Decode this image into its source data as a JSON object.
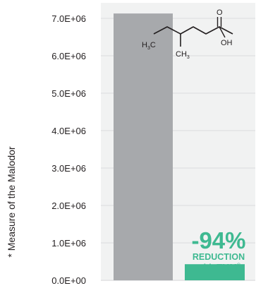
{
  "chart_data": {
    "type": "bar",
    "ylabel": "* Measure of the Malodor",
    "ylim": [
      0,
      7000000
    ],
    "y_ticks": [
      {
        "value": 0,
        "label": "0.0E+00"
      },
      {
        "value": 1000000,
        "label": "1.0E+06"
      },
      {
        "value": 2000000,
        "label": "2.0E+06"
      },
      {
        "value": 3000000,
        "label": "3.0E+06"
      },
      {
        "value": 4000000,
        "label": "4.0E+06"
      },
      {
        "value": 5000000,
        "label": "5.0E+06"
      },
      {
        "value": 6000000,
        "label": "6.0E+06"
      },
      {
        "value": 7000000,
        "label": "7.0E+06"
      }
    ],
    "grid": true,
    "bars": [
      {
        "value": 7130000,
        "color": "#a7a9ac"
      },
      {
        "value": 430000,
        "color": "#3eb991"
      }
    ],
    "annotation": {
      "percent": "-94%",
      "line1": "REDUCTION",
      "line2": "with TMM",
      "line2_mark": "®",
      "color": "#3eb991"
    },
    "molecule": {
      "left_group": "H",
      "left_group_sub": "3",
      "left_group_end": "C",
      "branch_group": "CH",
      "branch_group_sub": "3",
      "carbonyl_o": "O",
      "hydroxyl": "OH"
    },
    "colors": {
      "panel_background": "#f1f2f2",
      "gridline": "#e6e7e8",
      "text": "#231f20"
    }
  }
}
